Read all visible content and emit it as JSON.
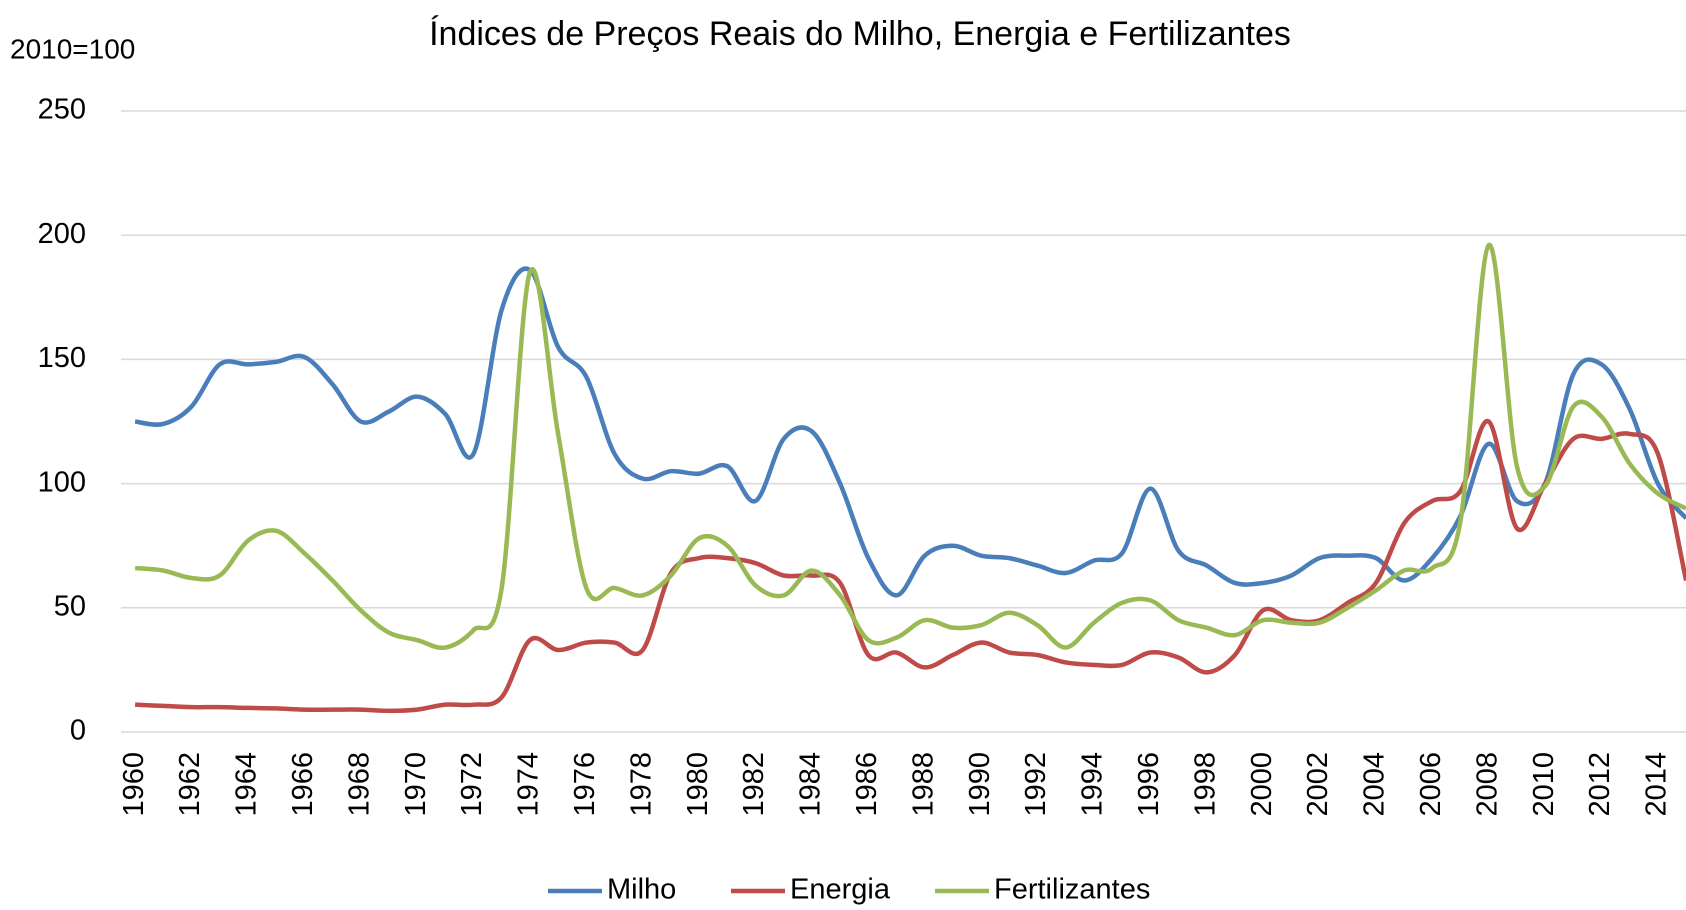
{
  "chart_data": {
    "type": "line",
    "title": "Índices de Preços Reais do Milho, Energia e Fertilizantes",
    "y_axis_label": "2010=100",
    "categories": [
      "1960",
      null,
      "1962",
      null,
      "1964",
      null,
      "1966",
      null,
      "1968",
      null,
      "1970",
      null,
      "1972",
      null,
      "1974",
      null,
      "1976",
      null,
      "1978",
      null,
      "1980",
      null,
      "1982",
      null,
      "1984",
      null,
      "1986",
      null,
      "1988",
      null,
      "1990",
      null,
      "1992",
      null,
      "1994",
      null,
      "1996",
      null,
      "1998",
      null,
      "2000",
      null,
      "2002",
      null,
      "2004",
      null,
      "2006",
      null,
      "2008",
      null,
      "2010",
      null,
      "2012",
      null,
      "2014",
      null
    ],
    "series": [
      {
        "name": "Milho",
        "color": "#4a7ebb",
        "values": [
          125,
          124,
          131,
          148,
          148,
          149,
          151,
          140,
          125,
          129,
          135,
          128,
          112,
          170,
          186,
          155,
          143,
          112,
          102,
          105,
          104,
          107,
          93,
          118,
          121,
          100,
          70,
          55,
          71,
          75,
          71,
          70,
          67,
          64,
          69,
          72,
          98,
          73,
          67,
          60,
          60,
          63,
          70,
          71,
          70,
          61,
          70,
          87,
          116,
          93,
          100,
          144,
          148,
          130,
          100,
          86
        ]
      },
      {
        "name": "Energia",
        "color": "#be4b48",
        "values": [
          11,
          10.5,
          10,
          10,
          9.7,
          9.5,
          9,
          9,
          9,
          8.5,
          9,
          11,
          11,
          14,
          37,
          33,
          36,
          36,
          33,
          64,
          70,
          70,
          68,
          63,
          63,
          60,
          31,
          32,
          26,
          31,
          36,
          32,
          31,
          28,
          27,
          27,
          32,
          30,
          24,
          31,
          49,
          45,
          45,
          52,
          60,
          84,
          93,
          97,
          125,
          82,
          100,
          118,
          118,
          120,
          112,
          61
        ]
      },
      {
        "name": "Fertilizantes",
        "color": "#98b954",
        "values": [
          66,
          65,
          62,
          63,
          77,
          81,
          72,
          61,
          49,
          40,
          37,
          34,
          41,
          58,
          185,
          120,
          58,
          58,
          55,
          63,
          78,
          75,
          59,
          55,
          65,
          55,
          37,
          38,
          45,
          42,
          43,
          48,
          43,
          34,
          44,
          52,
          53,
          45,
          42,
          39,
          45,
          44,
          44,
          50,
          57,
          65,
          66,
          85,
          196,
          107,
          99,
          131,
          127,
          108,
          96,
          90
        ]
      }
    ],
    "ylim": [
      0,
      250
    ],
    "yticks": [
      0,
      50,
      100,
      150,
      200,
      250
    ],
    "grid": true,
    "legend": "bottom"
  }
}
